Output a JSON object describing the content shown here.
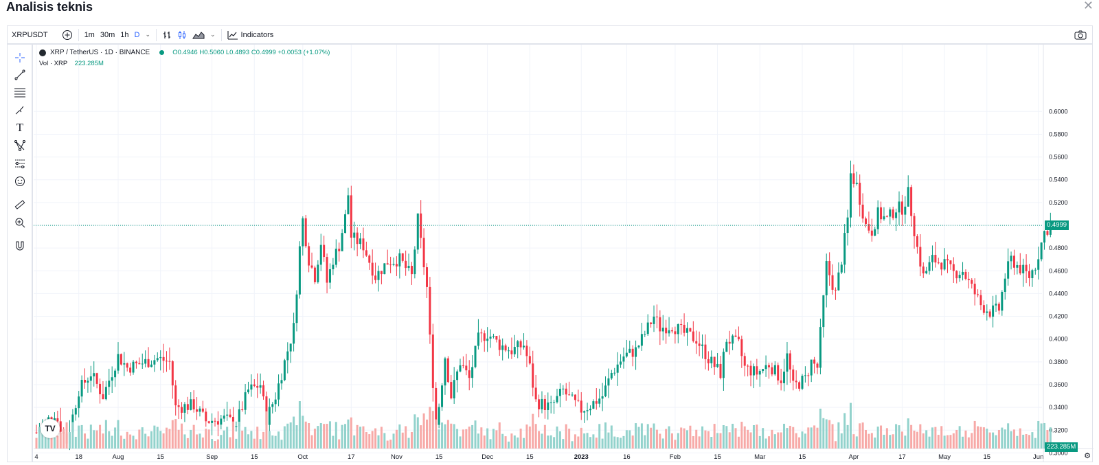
{
  "page": {
    "title": "Analisis teknis"
  },
  "toolbar": {
    "symbol": "XRPUSDT",
    "intervals": [
      "1m",
      "30m",
      "1h",
      "D"
    ],
    "active_interval": "D",
    "indicators_label": "Indicators"
  },
  "legend": {
    "title": "XRP / TetherUS · 1D · BINANCE",
    "ohlc": "O0.4946  H0.5060  L0.4893  C0.4999  +0.0053 (+1.07%)",
    "vol_label": "Vol · XRP",
    "vol_value": "223.285M"
  },
  "colors": {
    "up": "#089981",
    "down": "#f23645",
    "vol_up": "#92d2cc",
    "vol_down": "#f7a9a7"
  },
  "chart_data": {
    "type": "candlestick",
    "current_price": "0.4999",
    "current_volume": "223.285M",
    "y_ticks": [
      0.3,
      0.32,
      0.34,
      0.36,
      0.38,
      0.4,
      0.42,
      0.44,
      0.46,
      0.48,
      0.5,
      0.52,
      0.54,
      0.56,
      0.58,
      0.6
    ],
    "y_tick_labels": [
      "0.3000",
      "0.3200",
      "0.3400",
      "0.3600",
      "0.3800",
      "0.4000",
      "0.4200",
      "0.4400",
      "0.4600",
      "0.4800",
      "0.5000",
      "0.5200",
      "0.5400",
      "0.5600",
      "0.5800",
      "0.6000"
    ],
    "x_ticks": [
      {
        "label": "4",
        "d": 0
      },
      {
        "label": "18",
        "d": 14
      },
      {
        "label": "Aug",
        "d": 27
      },
      {
        "label": "15",
        "d": 41
      },
      {
        "label": "Sep",
        "d": 58
      },
      {
        "label": "15",
        "d": 72
      },
      {
        "label": "Oct",
        "d": 88
      },
      {
        "label": "17",
        "d": 104
      },
      {
        "label": "Nov",
        "d": 119
      },
      {
        "label": "15",
        "d": 133
      },
      {
        "label": "Dec",
        "d": 149
      },
      {
        "label": "15",
        "d": 163
      },
      {
        "label": "2023",
        "d": 180
      },
      {
        "label": "16",
        "d": 195
      },
      {
        "label": "Feb",
        "d": 211
      },
      {
        "label": "15",
        "d": 225
      },
      {
        "label": "Mar",
        "d": 239
      },
      {
        "label": "15",
        "d": 253
      },
      {
        "label": "Apr",
        "d": 270
      },
      {
        "label": "17",
        "d": 286
      },
      {
        "label": "May",
        "d": 300
      },
      {
        "label": "15",
        "d": 314
      },
      {
        "label": "Jun",
        "d": 331
      }
    ],
    "price_path": [
      [
        0,
        0.318
      ],
      [
        6,
        0.335
      ],
      [
        10,
        0.31
      ],
      [
        14,
        0.355
      ],
      [
        18,
        0.37
      ],
      [
        22,
        0.35
      ],
      [
        27,
        0.385
      ],
      [
        30,
        0.375
      ],
      [
        40,
        0.383
      ],
      [
        44,
        0.38
      ],
      [
        46,
        0.34
      ],
      [
        52,
        0.342
      ],
      [
        56,
        0.328
      ],
      [
        62,
        0.33
      ],
      [
        66,
        0.326
      ],
      [
        70,
        0.355
      ],
      [
        74,
        0.36
      ],
      [
        76,
        0.33
      ],
      [
        79,
        0.35
      ],
      [
        82,
        0.38
      ],
      [
        85,
        0.41
      ],
      [
        87,
        0.48
      ],
      [
        88,
        0.505
      ],
      [
        90,
        0.47
      ],
      [
        92,
        0.455
      ],
      [
        94,
        0.485
      ],
      [
        96,
        0.45
      ],
      [
        98,
        0.47
      ],
      [
        100,
        0.482
      ],
      [
        102,
        0.507
      ],
      [
        103,
        0.527
      ],
      [
        104,
        0.49
      ],
      [
        108,
        0.482
      ],
      [
        112,
        0.455
      ],
      [
        116,
        0.468
      ],
      [
        120,
        0.47
      ],
      [
        124,
        0.455
      ],
      [
        126,
        0.505
      ],
      [
        128,
        0.465
      ],
      [
        129,
        0.445
      ],
      [
        130,
        0.4
      ],
      [
        132,
        0.325
      ],
      [
        133,
        0.342
      ],
      [
        135,
        0.385
      ],
      [
        137,
        0.35
      ],
      [
        140,
        0.38
      ],
      [
        143,
        0.365
      ],
      [
        146,
        0.4
      ],
      [
        149,
        0.405
      ],
      [
        153,
        0.395
      ],
      [
        157,
        0.39
      ],
      [
        161,
        0.395
      ],
      [
        163,
        0.375
      ],
      [
        165,
        0.345
      ],
      [
        170,
        0.34
      ],
      [
        174,
        0.355
      ],
      [
        176,
        0.348
      ],
      [
        180,
        0.338
      ],
      [
        183,
        0.342
      ],
      [
        187,
        0.35
      ],
      [
        190,
        0.37
      ],
      [
        194,
        0.385
      ],
      [
        198,
        0.39
      ],
      [
        201,
        0.405
      ],
      [
        204,
        0.42
      ],
      [
        206,
        0.41
      ],
      [
        210,
        0.412
      ],
      [
        214,
        0.405
      ],
      [
        218,
        0.4
      ],
      [
        222,
        0.383
      ],
      [
        226,
        0.37
      ],
      [
        228,
        0.4
      ],
      [
        232,
        0.395
      ],
      [
        234,
        0.375
      ],
      [
        238,
        0.37
      ],
      [
        242,
        0.378
      ],
      [
        246,
        0.365
      ],
      [
        248,
        0.385
      ],
      [
        250,
        0.358
      ],
      [
        254,
        0.365
      ],
      [
        256,
        0.38
      ],
      [
        258,
        0.375
      ],
      [
        261,
        0.465
      ],
      [
        264,
        0.44
      ],
      [
        266,
        0.47
      ],
      [
        268,
        0.505
      ],
      [
        269,
        0.545
      ],
      [
        271,
        0.535
      ],
      [
        274,
        0.5
      ],
      [
        276,
        0.495
      ],
      [
        278,
        0.51
      ],
      [
        281,
        0.505
      ],
      [
        284,
        0.515
      ],
      [
        286,
        0.515
      ],
      [
        288,
        0.528
      ],
      [
        291,
        0.48
      ],
      [
        293,
        0.455
      ],
      [
        296,
        0.47
      ],
      [
        300,
        0.466
      ],
      [
        303,
        0.458
      ],
      [
        306,
        0.46
      ],
      [
        309,
        0.445
      ],
      [
        312,
        0.43
      ],
      [
        315,
        0.424
      ],
      [
        318,
        0.426
      ],
      [
        320,
        0.455
      ],
      [
        322,
        0.47
      ],
      [
        325,
        0.462
      ],
      [
        328,
        0.455
      ],
      [
        330,
        0.465
      ],
      [
        333,
        0.494
      ],
      [
        335,
        0.4999
      ]
    ]
  }
}
